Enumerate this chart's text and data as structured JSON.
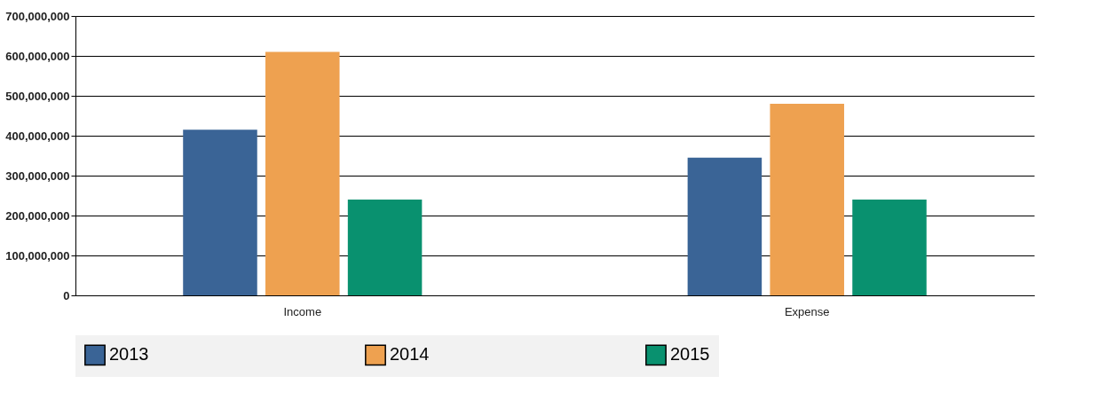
{
  "chart_data": {
    "type": "bar",
    "categories": [
      "Income",
      "Expense"
    ],
    "series": [
      {
        "name": "2013",
        "color": "#3a6496",
        "values": [
          415000000,
          345000000
        ]
      },
      {
        "name": "2014",
        "color": "#eea150",
        "values": [
          610000000,
          480000000
        ]
      },
      {
        "name": "2015",
        "color": "#09916f",
        "values": [
          240000000,
          240000000
        ]
      }
    ],
    "ylim": [
      0,
      700000000
    ],
    "yticks": [
      {
        "value": 0,
        "label": "0"
      },
      {
        "value": 100000000,
        "label": "100,000,000"
      },
      {
        "value": 200000000,
        "label": "200,000,000"
      },
      {
        "value": 300000000,
        "label": "300,000,000"
      },
      {
        "value": 400000000,
        "label": "400,000,000"
      },
      {
        "value": 500000000,
        "label": "500,000,000"
      },
      {
        "value": 600000000,
        "label": "600,000,000"
      },
      {
        "value": 700000000,
        "label": "700,000,000"
      }
    ],
    "grid": "y",
    "legend": "bottom"
  }
}
